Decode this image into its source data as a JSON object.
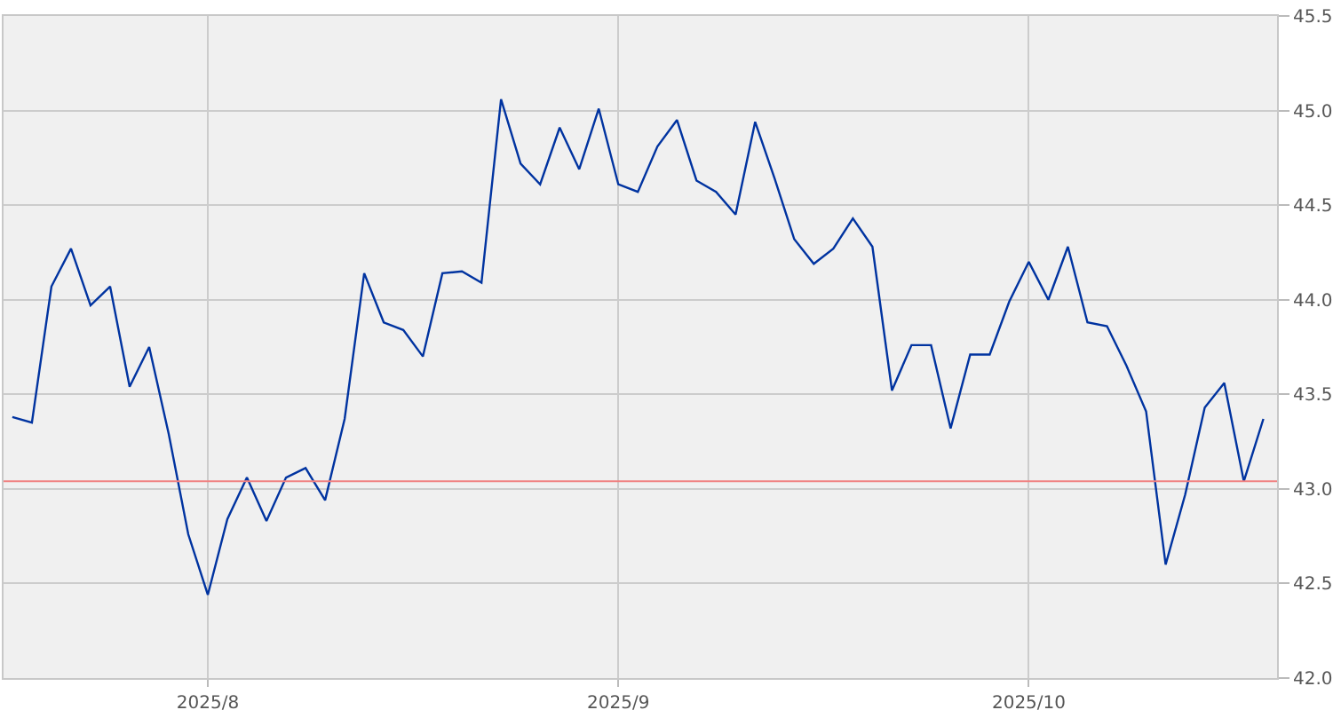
{
  "chart_data": {
    "type": "line",
    "categories": [
      null,
      null,
      null,
      null,
      null,
      null,
      null,
      null,
      null,
      null,
      "2025/8",
      null,
      null,
      null,
      null,
      null,
      null,
      null,
      null,
      null,
      null,
      null,
      null,
      null,
      null,
      null,
      null,
      null,
      null,
      null,
      null,
      "2025/9",
      null,
      null,
      null,
      null,
      null,
      null,
      null,
      null,
      null,
      null,
      null,
      null,
      null,
      null,
      null,
      null,
      null,
      null,
      null,
      null,
      "2025/10",
      null,
      null,
      null,
      null,
      null,
      null,
      null,
      null,
      null,
      null,
      null,
      null
    ],
    "series": [
      {
        "color": "#0033a0",
        "values": [
          43.38,
          43.35,
          44.07,
          44.27,
          43.97,
          44.07,
          43.54,
          43.75,
          43.29,
          42.76,
          42.44,
          42.84,
          43.06,
          42.83,
          43.06,
          43.11,
          42.94,
          43.37,
          44.14,
          43.88,
          43.84,
          43.7,
          44.14,
          44.15,
          44.09,
          45.06,
          44.72,
          44.61,
          44.91,
          44.69,
          45.01,
          44.61,
          44.57,
          44.81,
          44.95,
          44.63,
          44.57,
          44.45,
          44.94,
          44.64,
          44.32,
          44.19,
          44.27,
          44.43,
          44.28,
          43.52,
          43.76,
          43.76,
          43.32,
          43.71,
          43.71,
          43.99,
          44.2,
          44.0,
          44.28,
          43.88,
          43.86,
          43.65,
          43.41,
          42.6,
          42.97,
          43.43,
          43.56,
          43.04,
          43.37
        ]
      }
    ],
    "ylim": [
      42.0,
      45.5
    ],
    "yticks": [
      {
        "value": 42,
        "label": "42.0"
      },
      42.5,
      {
        "value": 43,
        "label": "43.0"
      },
      43.5,
      {
        "value": 44,
        "label": "44.0"
      },
      44.5,
      {
        "value": 45,
        "label": "45.0"
      },
      45.5
    ],
    "grid": true,
    "marker": "none",
    "line_style": "solid",
    "ref_lines": [
      {
        "axis": "y",
        "value": 43.04,
        "color": "#f08080"
      }
    ]
  }
}
